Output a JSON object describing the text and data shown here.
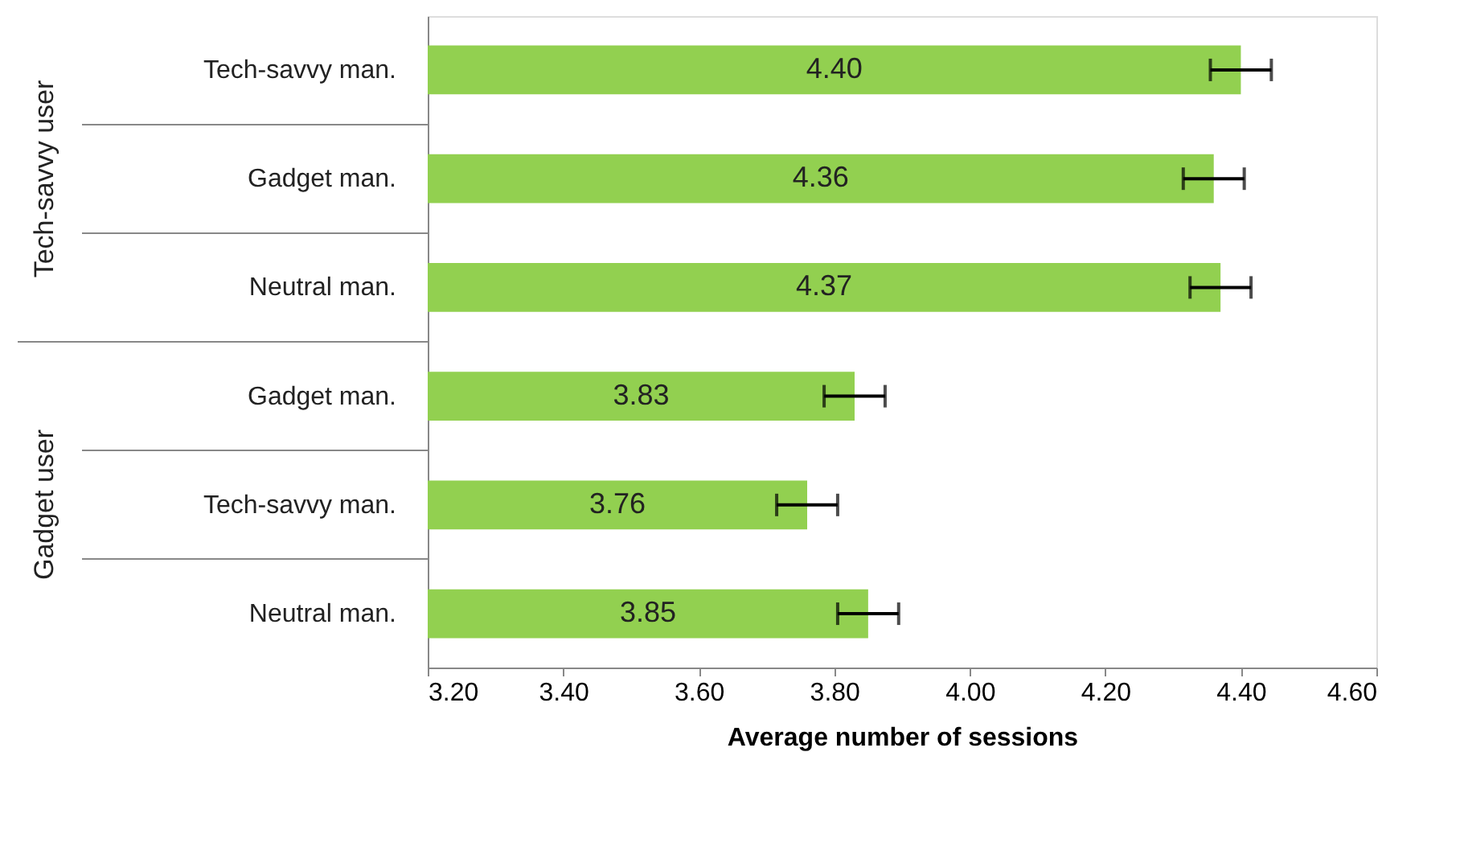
{
  "chart_data": {
    "type": "bar",
    "orientation": "horizontal",
    "xlabel": "Average number of sessions",
    "categories": [
      "Tech-savvy man.",
      "Gadget man.",
      "Neutral man.",
      "Gadget man.",
      "Tech-savvy man.",
      "Neutral man."
    ],
    "values": [
      4.4,
      4.36,
      4.37,
      3.83,
      3.76,
      3.85
    ],
    "value_labels": [
      "4.40",
      "4.36",
      "4.37",
      "3.83",
      "3.76",
      "3.85"
    ],
    "errors": [
      0.045,
      0.045,
      0.045,
      0.045,
      0.045,
      0.045
    ],
    "color": "#92d050",
    "xlim": [
      3.2,
      4.6
    ],
    "xticks": [
      {
        "value": 3.2,
        "label": "3.20"
      },
      {
        "value": 3.4,
        "label": "3.40"
      },
      {
        "value": 3.6,
        "label": "3.60"
      },
      {
        "value": 3.8,
        "label": "3.80"
      },
      {
        "value": 4.0,
        "label": "4.00"
      },
      {
        "value": 4.2,
        "label": "4.20"
      },
      {
        "value": 4.4,
        "label": "4.40"
      },
      {
        "value": 4.6,
        "label": "4.60"
      }
    ],
    "annotations": [
      "Tech-savvy user",
      "Gadget user"
    ],
    "grid": false
  }
}
